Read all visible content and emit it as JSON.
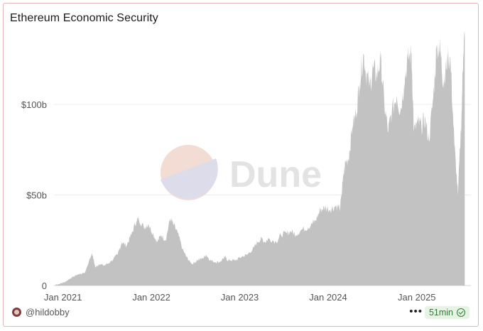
{
  "title": "Ethereum Economic Security",
  "watermark": "Dune",
  "footer": {
    "author": "@hildobby",
    "more_label": "•••",
    "freshness": "51min"
  },
  "chart_data": {
    "type": "area",
    "title": "Ethereum Economic Security",
    "xlabel": "",
    "ylabel": "",
    "x_ticks": [
      "Jan 2021",
      "Jan 2022",
      "Jan 2023",
      "Jan 2024",
      "Jan 2025"
    ],
    "y_ticks": [
      {
        "value": 0,
        "label": "0"
      },
      {
        "value": 50,
        "label": "$50b"
      },
      {
        "value": 100,
        "label": "$100b"
      }
    ],
    "ylim": [
      0,
      140
    ],
    "xlim": [
      "2020-11-25",
      "2025-07-20"
    ],
    "grid": true,
    "color": "#c2c2c2",
    "series": [
      {
        "x": [
          "2020-12-01",
          "2020-12-20",
          "2021-01-10",
          "2021-02-01",
          "2021-03-01",
          "2021-04-01",
          "2021-05-01",
          "2021-05-15",
          "2021-06-01",
          "2021-06-20",
          "2021-07-15",
          "2021-08-15",
          "2021-09-01",
          "2021-09-20",
          "2021-10-10",
          "2021-11-01",
          "2021-11-10",
          "2021-12-01",
          "2021-12-20",
          "2022-01-10",
          "2022-01-25",
          "2022-02-10",
          "2022-03-01",
          "2022-03-20",
          "2022-04-01",
          "2022-04-20",
          "2022-05-10",
          "2022-05-25",
          "2022-06-10",
          "2022-06-20",
          "2022-07-10",
          "2022-08-01",
          "2022-08-15",
          "2022-09-01",
          "2022-09-20",
          "2022-10-10",
          "2022-11-01",
          "2022-11-10",
          "2022-11-25",
          "2022-12-15",
          "2023-01-10",
          "2023-02-01",
          "2023-03-01",
          "2023-03-15",
          "2023-04-01",
          "2023-04-15",
          "2023-05-01",
          "2023-06-01",
          "2023-06-20",
          "2023-07-15",
          "2023-08-01",
          "2023-08-20",
          "2023-09-15",
          "2023-10-10",
          "2023-10-25",
          "2023-11-10",
          "2023-12-01",
          "2023-12-20",
          "2024-01-10",
          "2024-02-01",
          "2024-02-20",
          "2024-03-01",
          "2024-03-12",
          "2024-03-25",
          "2024-04-10",
          "2024-04-25",
          "2024-05-10",
          "2024-05-25",
          "2024-06-05",
          "2024-06-20",
          "2024-07-05",
          "2024-07-20",
          "2024-08-05",
          "2024-08-20",
          "2024-09-05",
          "2024-09-20",
          "2024-10-10",
          "2024-10-25",
          "2024-11-10",
          "2024-11-25",
          "2024-12-10",
          "2024-12-20",
          "2025-01-05",
          "2025-01-20",
          "2025-02-03",
          "2025-02-20",
          "2025-03-10",
          "2025-03-25",
          "2025-04-08",
          "2025-04-20",
          "2025-05-01",
          "2025-05-10",
          "2025-05-20",
          "2025-06-05",
          "2025-06-20",
          "2025-07-05",
          "2025-07-12",
          "2025-07-18"
        ],
        "y": [
          0.5,
          1,
          2,
          4,
          6,
          7,
          18,
          10,
          12,
          11,
          13,
          17,
          24,
          22,
          28,
          36,
          37,
          32,
          34,
          28,
          24,
          28,
          25,
          37,
          34,
          29,
          20,
          16,
          13,
          12,
          14,
          15,
          17,
          14,
          13,
          13,
          16,
          14,
          14,
          14,
          16,
          17,
          21,
          24,
          26,
          24,
          26,
          24,
          28,
          29,
          30,
          28,
          31,
          32,
          34,
          36,
          42,
          43,
          42,
          44,
          43,
          57,
          68,
          70,
          88,
          95,
          112,
          128,
          118,
          110,
          120,
          116,
          125,
          100,
          85,
          96,
          105,
          96,
          112,
          125,
          128,
          85,
          90,
          88,
          92,
          80,
          104,
          133,
          130,
          112,
          120,
          126,
          124,
          78,
          50,
          95,
          130,
          138
        ]
      }
    ]
  }
}
